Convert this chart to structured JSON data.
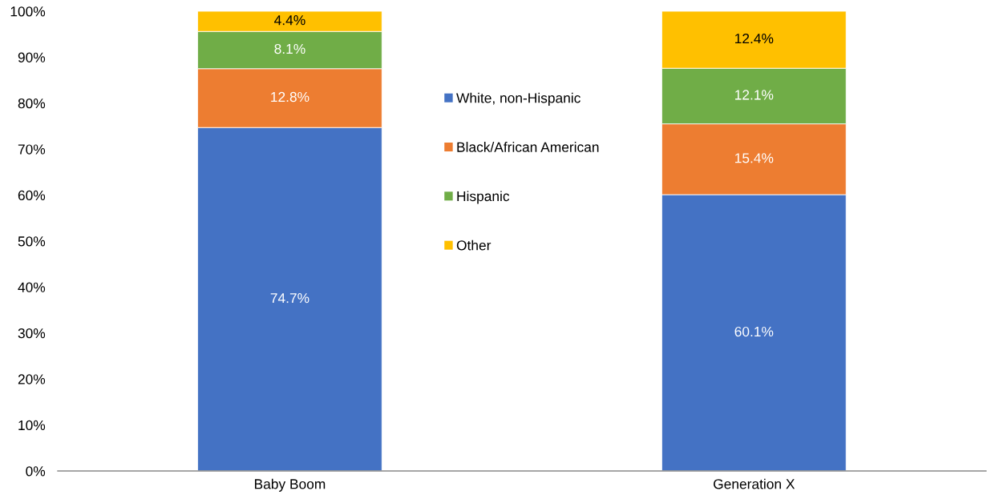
{
  "chart_data": {
    "type": "bar",
    "stacked": true,
    "categories": [
      "Baby Boom",
      "Generation X"
    ],
    "series": [
      {
        "name": "White, non-Hispanic",
        "color": "#4472c4",
        "values": [
          74.7,
          60.1
        ],
        "value_labels": [
          "74.7%",
          "60.1%"
        ]
      },
      {
        "name": "Black/African American",
        "color": "#ed7d31",
        "values": [
          12.8,
          15.4
        ],
        "value_labels": [
          "12.8%",
          "15.4%"
        ]
      },
      {
        "name": "Hispanic",
        "color": "#70ad47",
        "values": [
          8.1,
          12.1
        ],
        "value_labels": [
          "8.1%",
          "12.1%"
        ]
      },
      {
        "name": "Other",
        "color": "#ffc000",
        "values": [
          4.4,
          12.4
        ],
        "value_labels": [
          "4.4%",
          "12.4%"
        ]
      }
    ],
    "ylim": [
      0,
      100
    ],
    "yticks": [
      {
        "value": 0,
        "label": "0%"
      },
      {
        "value": 10,
        "label": "10%"
      },
      {
        "value": 20,
        "label": "20%"
      },
      {
        "value": 30,
        "label": "30%"
      },
      {
        "value": 40,
        "label": "40%"
      },
      {
        "value": 50,
        "label": "50%"
      },
      {
        "value": 60,
        "label": "60%"
      },
      {
        "value": 70,
        "label": "70%"
      },
      {
        "value": 80,
        "label": "80%"
      },
      {
        "value": 90,
        "label": "90%"
      },
      {
        "value": 100,
        "label": "100%"
      }
    ],
    "grid": false,
    "legend": "top"
  }
}
